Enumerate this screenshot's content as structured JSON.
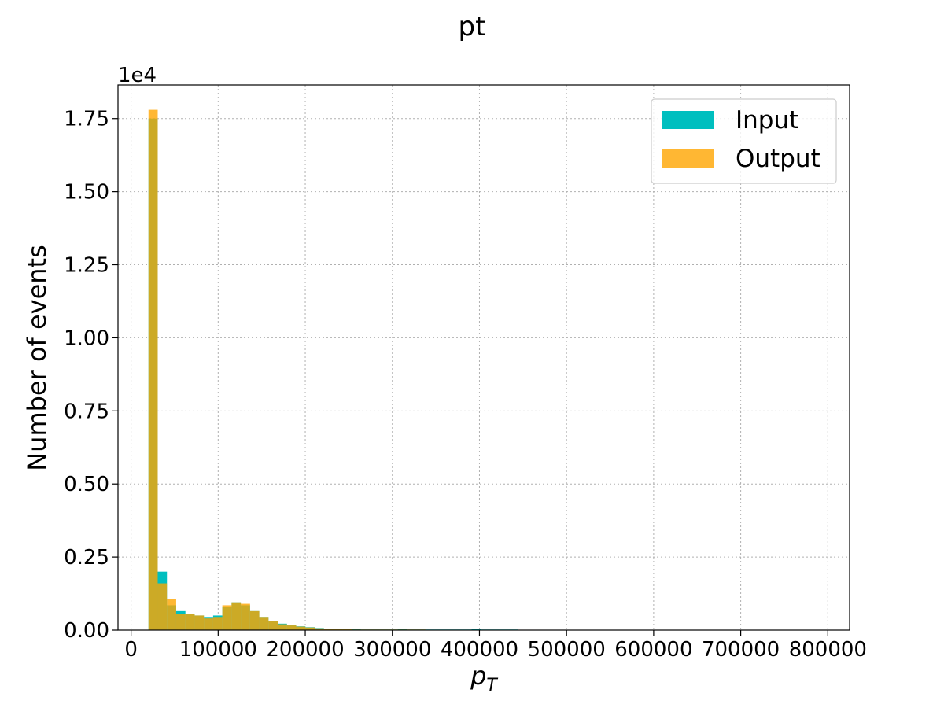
{
  "chart_data": {
    "type": "bar",
    "title": "pt",
    "xlabel_base": "p",
    "xlabel_sub": "T",
    "ylabel": "Number of events",
    "y_multiplier": "1e4",
    "xlim": [
      -15000,
      825000
    ],
    "ylim": [
      0,
      1.865
    ],
    "bin_width": 10600,
    "xticks": [
      {
        "value": 0,
        "label": "0"
      },
      {
        "value": 100000,
        "label": "100000"
      },
      {
        "value": 200000,
        "label": "200000"
      },
      {
        "value": 300000,
        "label": "300000"
      },
      {
        "value": 400000,
        "label": "400000"
      },
      {
        "value": 500000,
        "label": "500000"
      },
      {
        "value": 600000,
        "label": "600000"
      },
      {
        "value": 700000,
        "label": "700000"
      },
      {
        "value": 800000,
        "label": "800000"
      }
    ],
    "yticks": [
      {
        "value": 0,
        "label": "0.00"
      },
      {
        "value": 0.25,
        "label": "0.25"
      },
      {
        "value": 0.5,
        "label": "0.50"
      },
      {
        "value": 0.75,
        "label": "0.75"
      },
      {
        "value": 1.0,
        "label": "1.00"
      },
      {
        "value": 1.25,
        "label": "1.25"
      },
      {
        "value": 1.5,
        "label": "1.50"
      },
      {
        "value": 1.75,
        "label": "1.75"
      }
    ],
    "grid": true,
    "legend_position": "top-right",
    "bin_starts": [
      20000,
      30600,
      41200,
      51800,
      62400,
      73000,
      83600,
      94200,
      104800,
      115400,
      126000,
      136600,
      147200,
      157800,
      168400,
      179000,
      189600,
      200200,
      210800,
      221400,
      232000,
      242600,
      253200,
      263800,
      274400,
      285000,
      295600,
      306200,
      316800,
      327400,
      338000,
      348600,
      359200,
      369800,
      380400,
      391000,
      401600,
      412200,
      422800,
      433400
    ],
    "series": [
      {
        "name": "Input",
        "color": "#00bfbf",
        "alpha": 1.0,
        "values": [
          1.75,
          0.2,
          0.085,
          0.065,
          0.055,
          0.05,
          0.045,
          0.05,
          0.08,
          0.095,
          0.085,
          0.065,
          0.045,
          0.03,
          0.022,
          0.018,
          0.013,
          0.01,
          0.007,
          0.005,
          0.004,
          0.003,
          0.003,
          0.002,
          0.002,
          0.002,
          0.002,
          0.003,
          0.002,
          0.002,
          0.002,
          0.002,
          0.002,
          0.002,
          0.002,
          0.003,
          0.002,
          0.002,
          0.002,
          0.002
        ]
      },
      {
        "name": "Output",
        "color": "#ffa500",
        "alpha": 0.8,
        "values": [
          1.78,
          0.16,
          0.105,
          0.055,
          0.055,
          0.05,
          0.04,
          0.045,
          0.085,
          0.095,
          0.09,
          0.065,
          0.045,
          0.03,
          0.02,
          0.016,
          0.012,
          0.009,
          0.006,
          0.005,
          0.004,
          0.003,
          0.002,
          0.002,
          0.002,
          0.002,
          0.002,
          0.002,
          0.002,
          0.002,
          0.001,
          0.001,
          0.001,
          0.001,
          0.001,
          0.001,
          0.001,
          0.001,
          0.001,
          0.001
        ]
      }
    ]
  }
}
